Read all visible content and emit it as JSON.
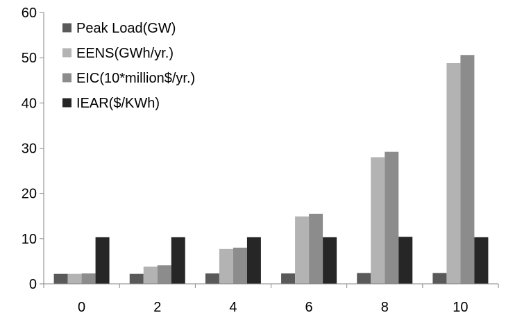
{
  "chart_data": {
    "type": "bar",
    "title": "",
    "xlabel": "",
    "ylabel": "",
    "categories": [
      "0",
      "2",
      "4",
      "6",
      "8",
      "10"
    ],
    "ylim": [
      0,
      60
    ],
    "yticks": [
      0,
      10,
      20,
      30,
      40,
      50,
      60
    ],
    "grid": false,
    "legend_position": "top-left",
    "series": [
      {
        "name": "Peak Load(GW)",
        "color": "#595959",
        "values": [
          2.2,
          2.2,
          2.3,
          2.3,
          2.4,
          2.4
        ]
      },
      {
        "name": "EENS(GWh/yr.)",
        "color": "#b3b3b3",
        "values": [
          2.2,
          3.8,
          7.7,
          14.9,
          28.0,
          48.8
        ]
      },
      {
        "name": "EIC(10*million$/yr.)",
        "color": "#8c8c8c",
        "values": [
          2.3,
          4.1,
          8.0,
          15.5,
          29.2,
          50.6
        ]
      },
      {
        "name": "IEAR($/KWh)",
        "color": "#262626",
        "values": [
          10.3,
          10.3,
          10.3,
          10.3,
          10.4,
          10.3
        ]
      }
    ]
  }
}
